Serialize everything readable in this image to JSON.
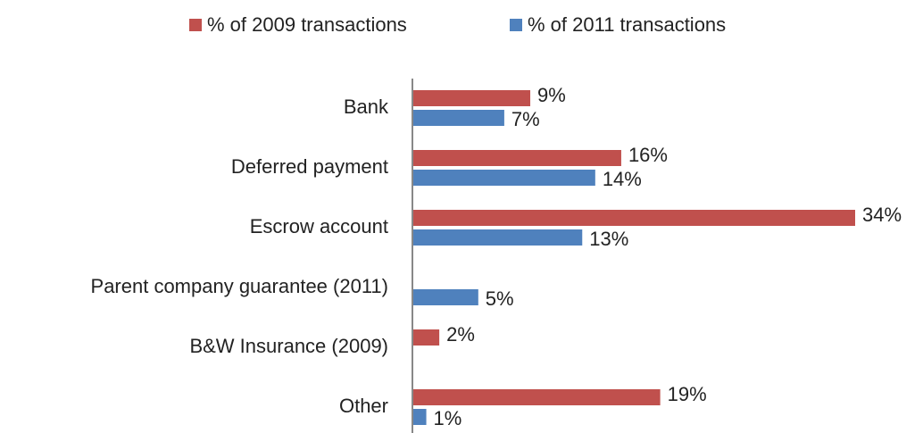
{
  "chart_data": {
    "type": "hbar",
    "categories": [
      "Bank",
      "Deferred payment",
      "Escrow account",
      "Parent company guarantee (2011)",
      "B&W Insurance (2009)",
      "Other"
    ],
    "series": [
      {
        "name": "% of 2009 transactions",
        "color": "#c0504d",
        "values": [
          9,
          16,
          34,
          null,
          2,
          19
        ],
        "value_labels": [
          "9%",
          "16%",
          "34%",
          null,
          "2%",
          "19%"
        ]
      },
      {
        "name": "% of 2011 transactions",
        "color": "#4f81bd",
        "values": [
          7,
          14,
          13,
          5,
          null,
          1
        ],
        "value_labels": [
          "7%",
          "14%",
          "13%",
          "5%",
          null,
          "1%"
        ]
      }
    ],
    "legend": "top"
  }
}
